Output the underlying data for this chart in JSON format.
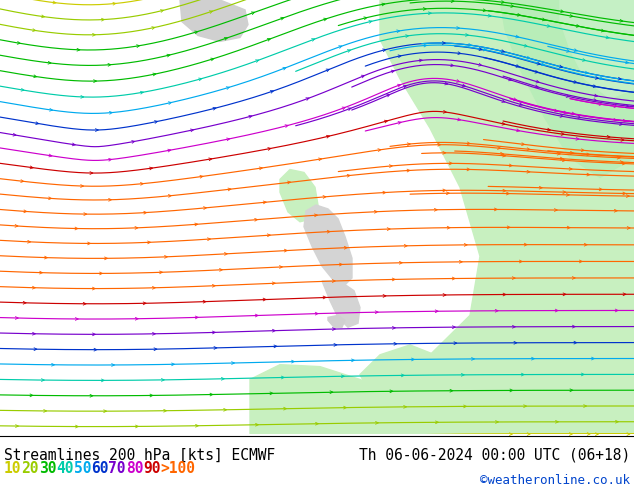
{
  "title_left": "Streamlines 200 hPa [kts] ECMWF",
  "title_right": "Th 06-06-2024 00:00 UTC (06+18)",
  "credit": "©weatheronline.co.uk",
  "legend_values": [
    "10",
    "20",
    "30",
    "40",
    "50",
    "60",
    "70",
    "80",
    "90",
    ">100"
  ],
  "legend_colors": [
    "#cccc00",
    "#99cc00",
    "#00bb00",
    "#00ccaa",
    "#00aaee",
    "#0033cc",
    "#7700cc",
    "#cc00cc",
    "#cc0000",
    "#ff6600"
  ],
  "bg_color": "#d8d8d8",
  "land_green": "#c8f0c0",
  "land_gray": "#d0d0d0",
  "title_fontsize": 10.5,
  "legend_fontsize": 10.5,
  "credit_fontsize": 9,
  "figsize": [
    6.34,
    4.9
  ],
  "dpi": 100
}
